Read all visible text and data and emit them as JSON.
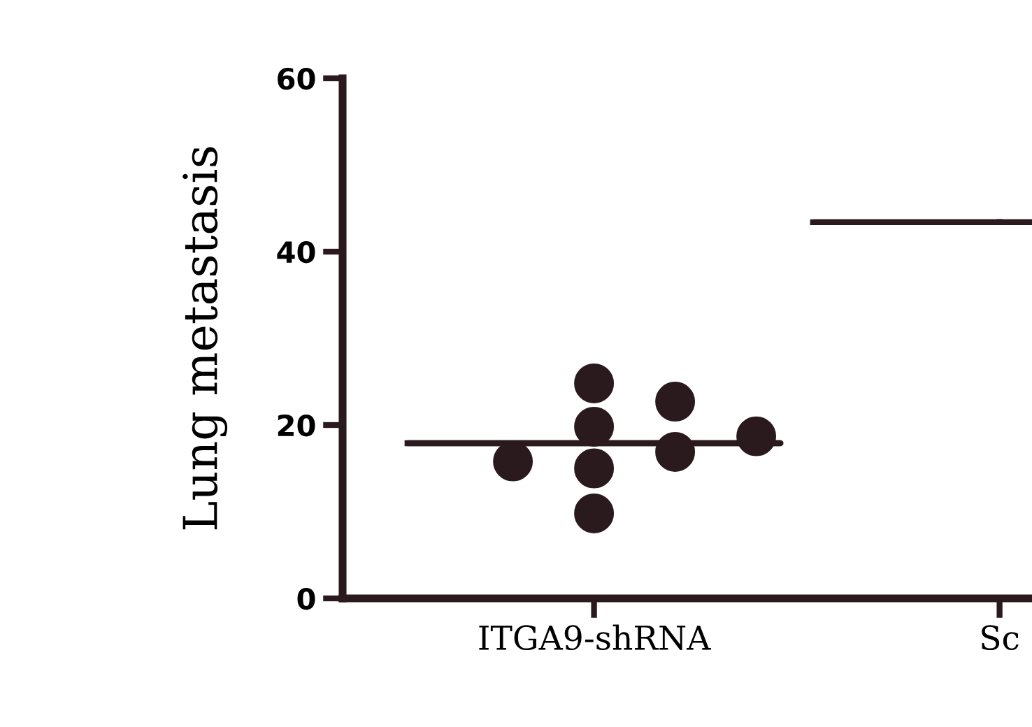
{
  "chart_data": {
    "type": "scatter",
    "ylabel": "Lung metastasis",
    "categories": [
      "ITGA9-shRNA",
      "Sc"
    ],
    "ylim": [
      0,
      60
    ],
    "yticks": [
      0,
      20,
      40,
      60
    ],
    "grid": false,
    "legend": false,
    "series": [
      {
        "color": "#2a1a1e",
        "marker": "circle",
        "x": [
          "ITGA9-shRNA",
          "ITGA9-shRNA",
          "ITGA9-shRNA",
          "ITGA9-shRNA",
          "ITGA9-shRNA",
          "ITGA9-shRNA",
          "ITGA9-shRNA",
          "ITGA9-shRNA"
        ],
        "values": [
          24.8,
          19.8,
          15.0,
          9.8,
          22.7,
          16.9,
          15.8,
          18.7
        ]
      },
      {
        "type": "box",
        "color": "#2a1a1e",
        "boxes": [
          {
            "low": 17.9,
            "q1": 17.9,
            "median": 17.9,
            "q3": 17.9,
            "high": 17.9
          },
          {
            "low": 43.4,
            "q1": 43.4,
            "median": 43.4,
            "q3": 43.4,
            "high": 43.4
          }
        ]
      }
    ]
  }
}
